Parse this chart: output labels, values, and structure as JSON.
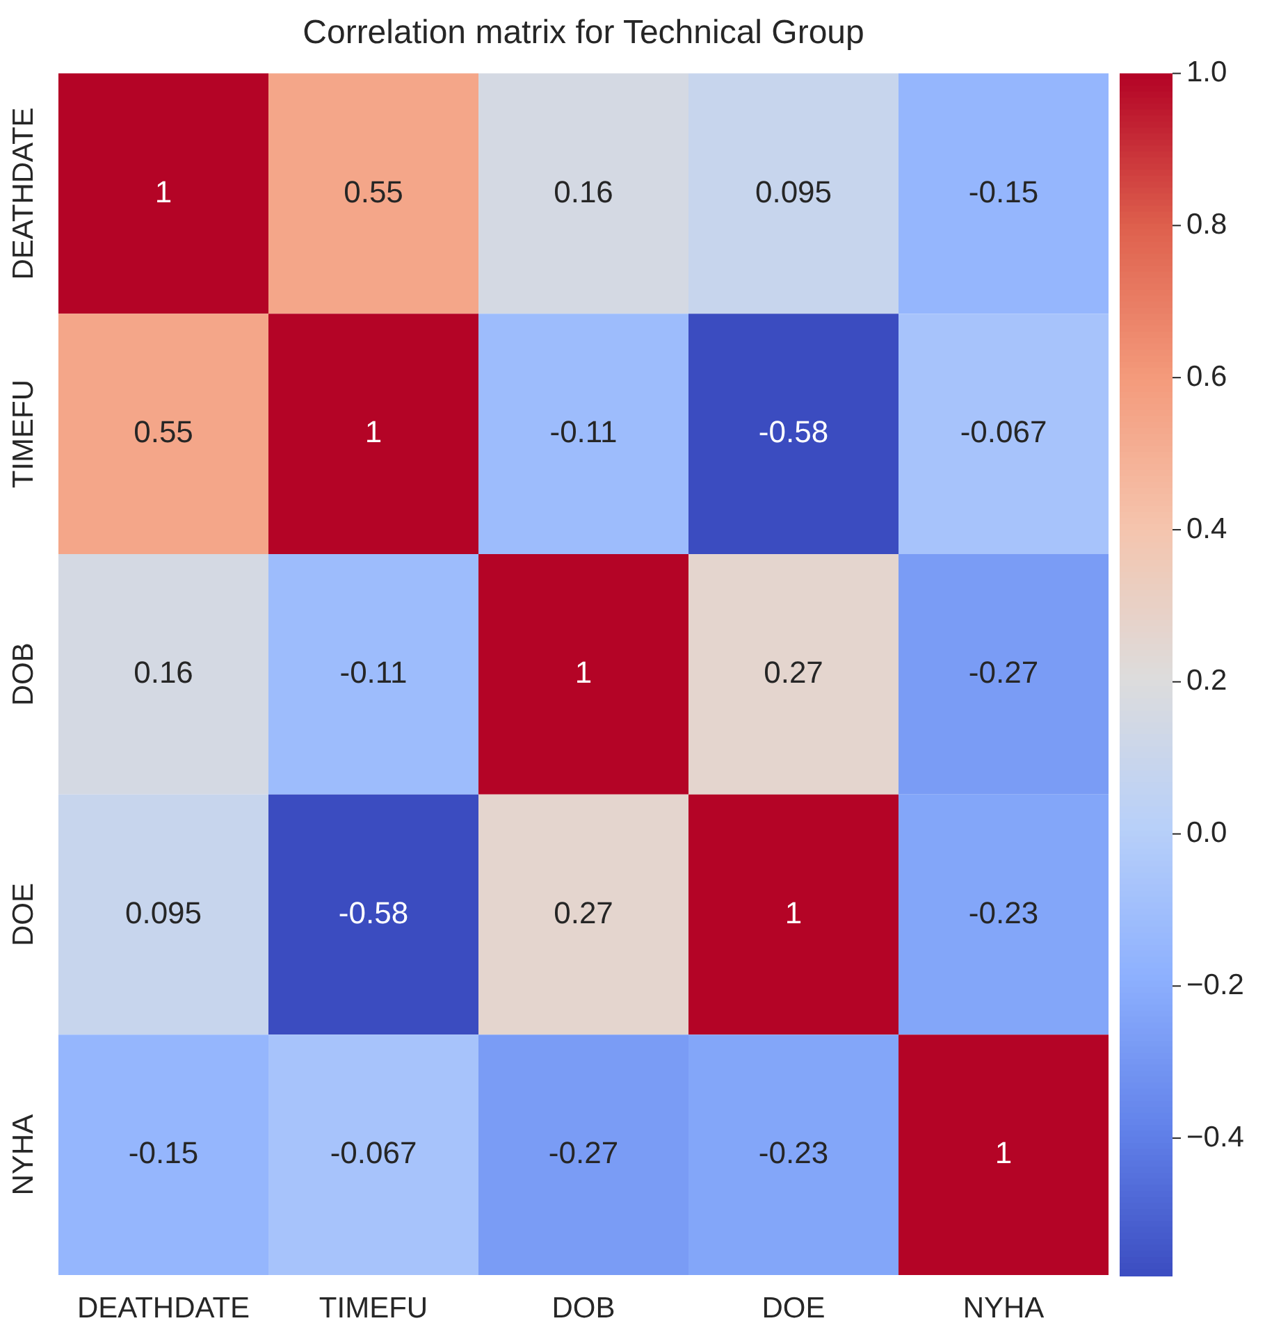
{
  "chart_data": {
    "type": "heatmap",
    "title": "Correlation matrix for Technical Group",
    "categories": [
      "DEATHDATE",
      "TIMEFU",
      "DOB",
      "DOE",
      "NYHA"
    ],
    "y_categories": [
      "DEATHDATE",
      "TIMEFU",
      "DOB",
      "DOE",
      "NYHA"
    ],
    "cells": [
      [
        1,
        0.55,
        0.16,
        0.095,
        -0.15
      ],
      [
        0.55,
        1,
        -0.11,
        -0.58,
        -0.067
      ],
      [
        0.16,
        -0.11,
        1,
        0.27,
        -0.27
      ],
      [
        0.095,
        -0.58,
        0.27,
        1,
        -0.23
      ],
      [
        -0.15,
        -0.067,
        -0.27,
        -0.23,
        1
      ]
    ],
    "clim": [
      -0.58,
      1
    ],
    "cticks": [
      {
        "value": -0.4,
        "label": "−0.4"
      },
      {
        "value": -0.2,
        "label": "−0.2"
      },
      {
        "value": 0,
        "label": "0.0"
      },
      {
        "value": 0.2,
        "label": "0.2"
      },
      {
        "value": 0.4,
        "label": "0.4"
      },
      {
        "value": 0.6,
        "label": "0.6"
      },
      {
        "value": 0.8,
        "label": "0.8"
      },
      {
        "value": 1,
        "label": "1.0"
      }
    ],
    "data_labels": true
  }
}
